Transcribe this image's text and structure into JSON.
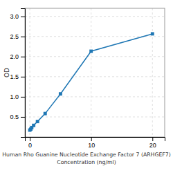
{
  "chart_data": {
    "type": "line",
    "xlabel": "Human Rho Guanine Nucleotide Exchange Factor 7 (ARHGEF7)\nConcentration (ng/ml)",
    "ylabel": "OD",
    "x": [
      0,
      0.156,
      0.313,
      0.625,
      1.25,
      2.5,
      5,
      10,
      20
    ],
    "values": [
      0.172,
      0.196,
      0.234,
      0.289,
      0.385,
      0.583,
      1.072,
      2.133,
      2.565
    ],
    "marker": "square",
    "xlim": [
      -0.8,
      22
    ],
    "ylim": [
      0,
      3.2
    ],
    "xticks": [
      0,
      10,
      20
    ],
    "yticks": [
      0.5,
      {
        "value": 1.0,
        "label": "1.0"
      },
      1.5,
      {
        "value": 2.0,
        "label": "2.0"
      },
      2.5,
      {
        "value": 3.0,
        "label": "3.0"
      }
    ],
    "grid": true
  }
}
